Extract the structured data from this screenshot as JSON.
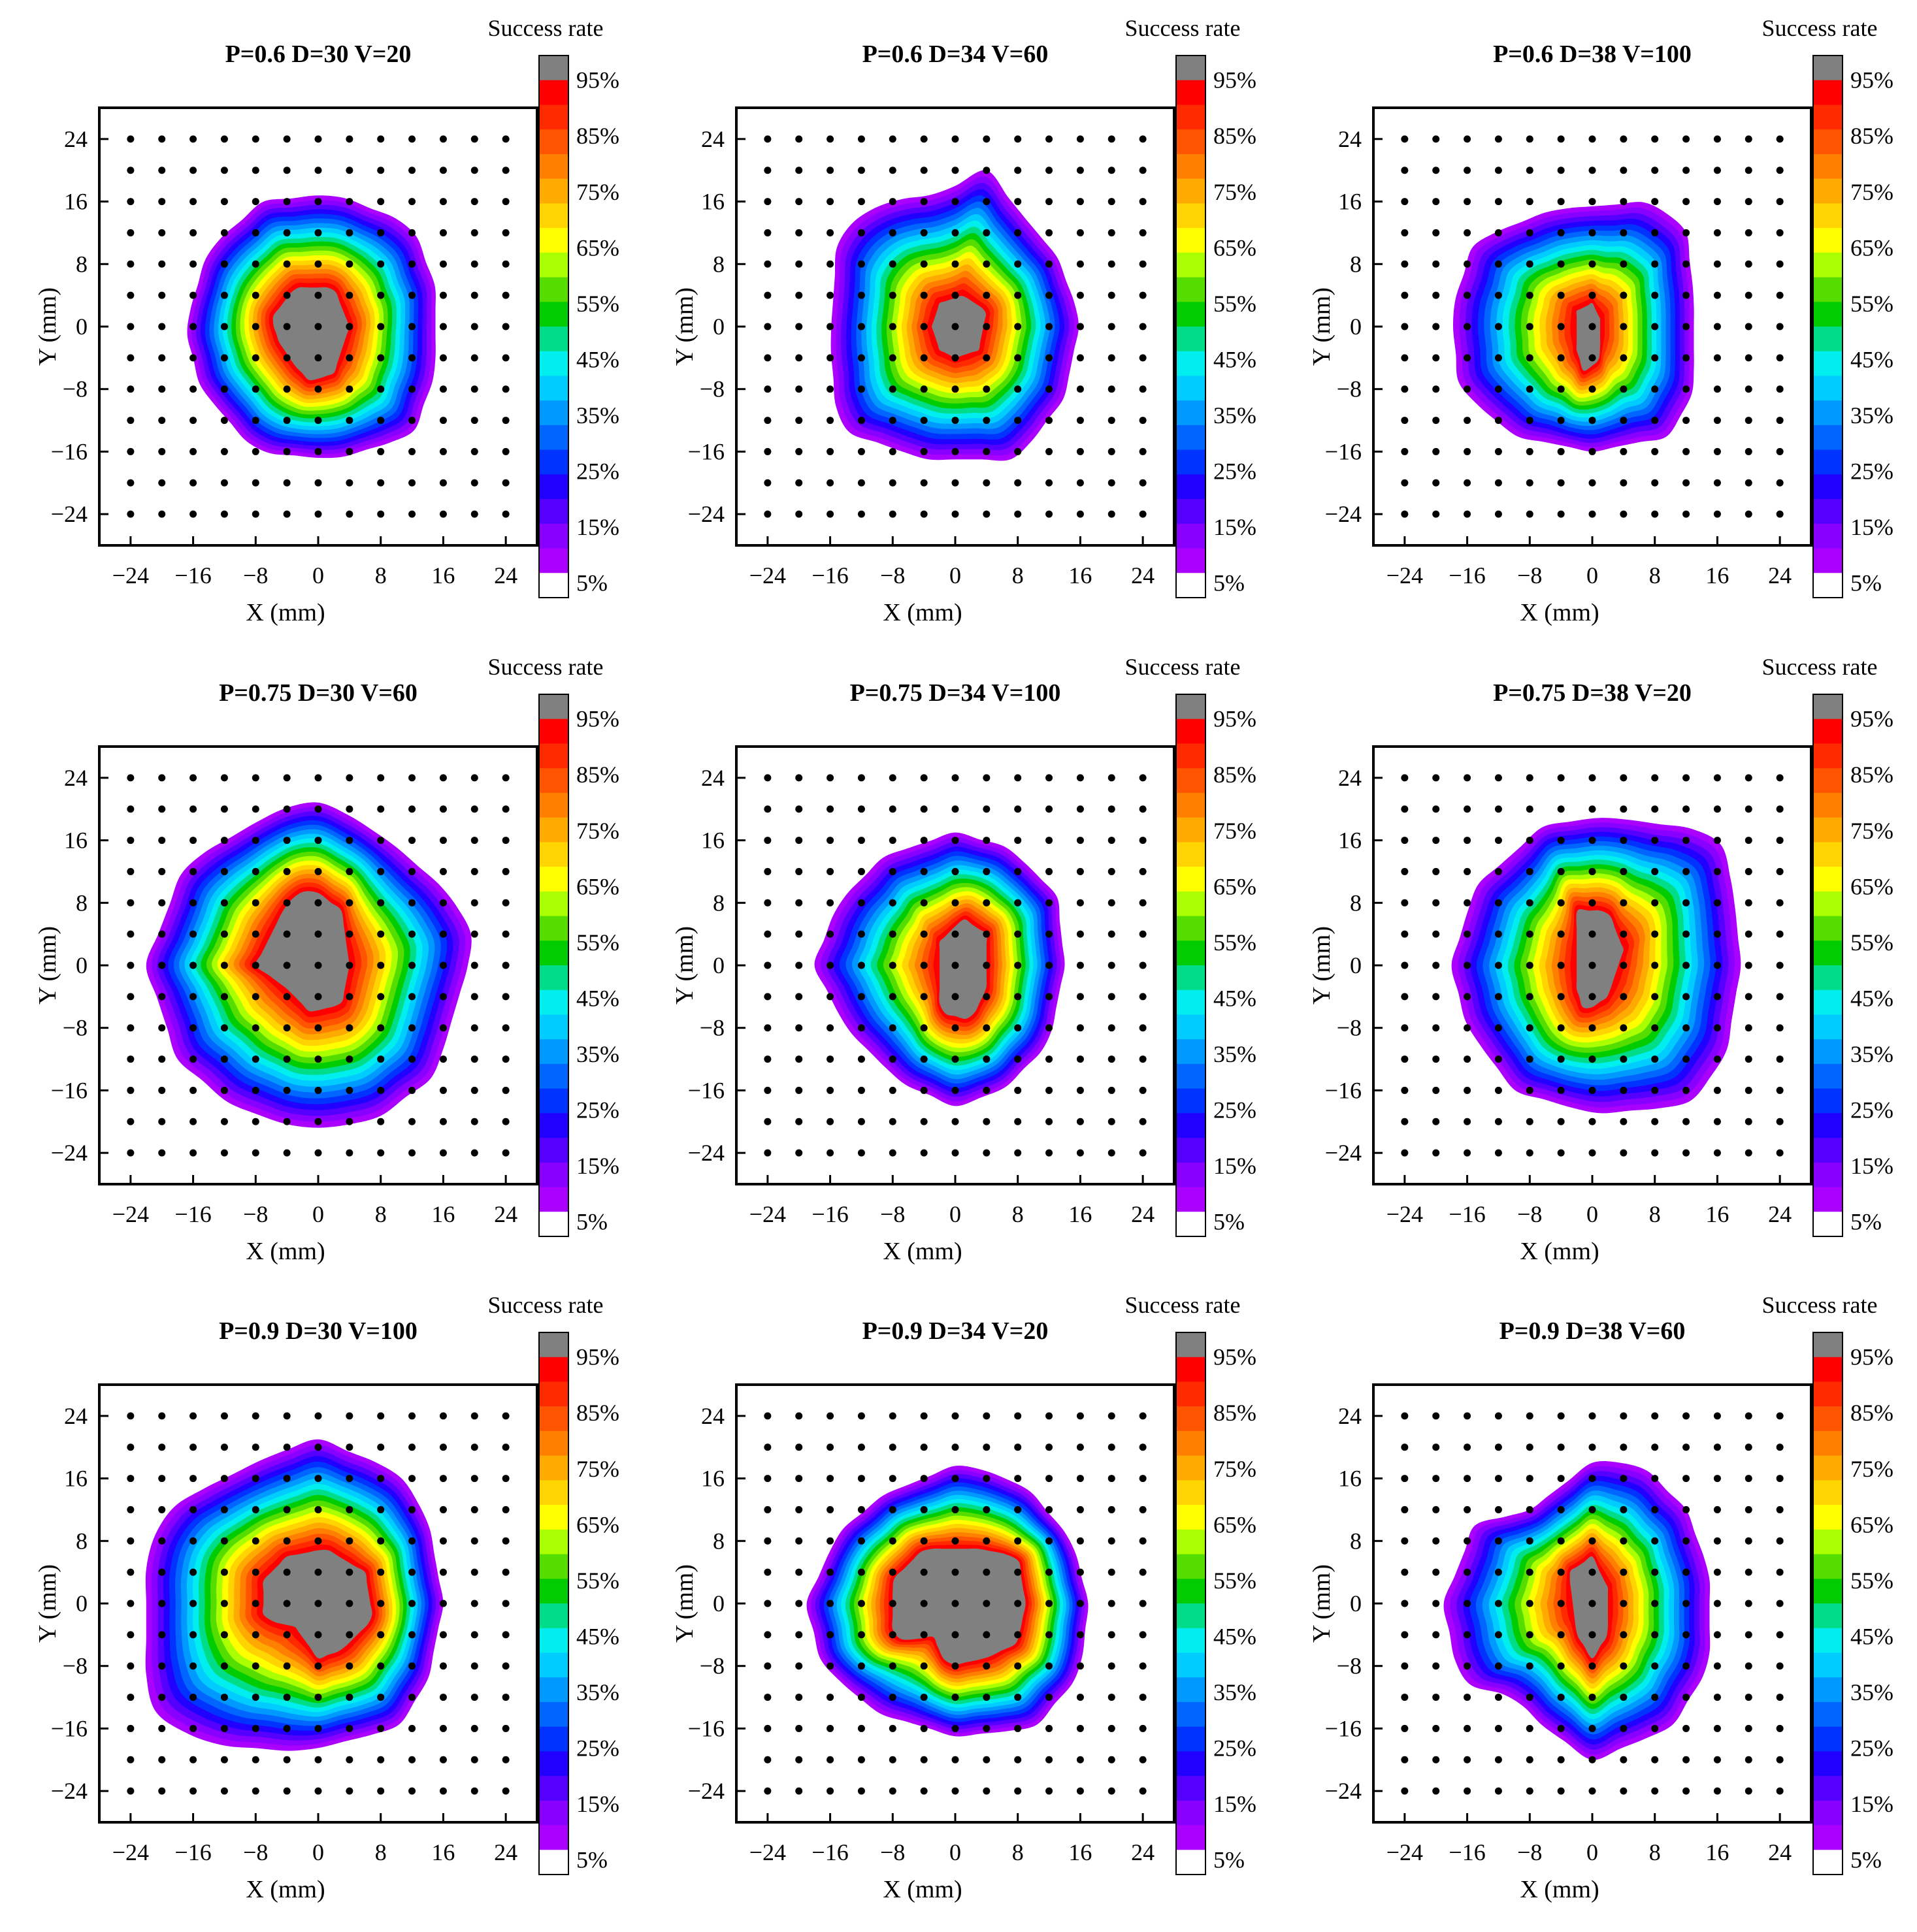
{
  "chart_data": [
    {
      "type": "heatmap",
      "title": "P=0.6 D=30 V=20",
      "xlabel": "X (mm)",
      "ylabel": "Y (mm)",
      "xlim": [
        -28,
        28
      ],
      "ylim": [
        -28,
        28
      ],
      "x_ticks": [
        "−24",
        "−16",
        "−8",
        "0",
        "8",
        "16",
        "24"
      ],
      "y_ticks": [
        "24",
        "16",
        "8",
        "0",
        "−8",
        "−16",
        "−24"
      ],
      "grid_points_step_mm": 4,
      "colorbar_title": "Success rate",
      "contour": {
        "center": [
          0,
          -1
        ],
        "radius_5": [
          18,
          16
        ],
        "radius_95": [
          6,
          7
        ],
        "points": [
          [
            -17,
            0
          ],
          [
            -14,
            10
          ],
          [
            -7,
            16
          ],
          [
            2,
            17
          ],
          [
            12,
            13
          ],
          [
            15,
            5
          ],
          [
            15,
            -6
          ],
          [
            12,
            -14
          ],
          [
            2,
            -17
          ],
          [
            -8,
            -16
          ],
          [
            -15,
            -8
          ]
        ],
        "core": [
          [
            -6,
            1
          ],
          [
            -3,
            5
          ],
          [
            2,
            5
          ],
          [
            4,
            0
          ],
          [
            2,
            -6
          ],
          [
            -1,
            -7
          ],
          [
            -3,
            -5
          ],
          [
            -5,
            -2
          ]
        ]
      }
    },
    {
      "type": "heatmap",
      "title": "P=0.6 D=34 V=60",
      "xlabel": "X (mm)",
      "ylabel": "Y (mm)",
      "xlim": [
        -28,
        28
      ],
      "ylim": [
        -28,
        28
      ],
      "x_ticks": [
        "−24",
        "−16",
        "−8",
        "0",
        "8",
        "16",
        "24"
      ],
      "y_ticks": [
        "24",
        "16",
        "8",
        "0",
        "−8",
        "−16",
        "−24"
      ],
      "grid_points_step_mm": 4,
      "colorbar_title": "Success rate",
      "contour": {
        "center": [
          0,
          0
        ],
        "radius_5": [
          15,
          17
        ],
        "radius_95": [
          3,
          3
        ],
        "points": [
          [
            -15,
            12
          ],
          [
            -9,
            16
          ],
          [
            -2,
            17
          ],
          [
            4,
            20
          ],
          [
            8,
            15
          ],
          [
            13,
            9
          ],
          [
            16,
            1
          ],
          [
            14,
            -9
          ],
          [
            8,
            -17
          ],
          [
            -4,
            -17
          ],
          [
            -15,
            -13
          ],
          [
            -16,
            -2
          ]
        ],
        "core": [
          [
            -3,
            0
          ],
          [
            -2,
            3
          ],
          [
            1,
            4
          ],
          [
            4,
            2
          ],
          [
            3,
            -3
          ],
          [
            0,
            -4
          ],
          [
            -2,
            -3
          ]
        ]
      }
    },
    {
      "type": "heatmap",
      "title": "P=0.6 D=38 V=100",
      "xlabel": "X (mm)",
      "ylabel": "Y (mm)",
      "xlim": [
        -28,
        28
      ],
      "ylim": [
        -28,
        28
      ],
      "x_ticks": [
        "−24",
        "−16",
        "−8",
        "0",
        "8",
        "16",
        "24"
      ],
      "y_ticks": [
        "24",
        "16",
        "8",
        "0",
        "−8",
        "−16",
        "−24"
      ],
      "grid_points_step_mm": 4,
      "colorbar_title": "Success rate",
      "contour": {
        "center": [
          0,
          0
        ],
        "radius_5": [
          18,
          16
        ],
        "radius_95": [
          2,
          4
        ],
        "points": [
          [
            -18,
            2
          ],
          [
            -15,
            11
          ],
          [
            -5,
            15
          ],
          [
            8,
            16
          ],
          [
            12,
            12
          ],
          [
            13,
            4
          ],
          [
            13,
            -8
          ],
          [
            10,
            -14
          ],
          [
            0,
            -16
          ],
          [
            -10,
            -14
          ],
          [
            -17,
            -8
          ]
        ],
        "core": [
          [
            -2,
            2
          ],
          [
            0,
            3
          ],
          [
            1,
            1
          ],
          [
            1,
            -4
          ],
          [
            -1,
            -6
          ],
          [
            -2,
            -3
          ]
        ]
      }
    },
    {
      "type": "heatmap",
      "title": "P=0.75 D=30 V=60",
      "xlabel": "X (mm)",
      "ylabel": "Y (mm)",
      "xlim": [
        -28,
        28
      ],
      "ylim": [
        -28,
        28
      ],
      "x_ticks": [
        "−24",
        "−16",
        "−8",
        "0",
        "8",
        "16",
        "24"
      ],
      "y_ticks": [
        "24",
        "16",
        "8",
        "0",
        "−8",
        "−16",
        "−24"
      ],
      "grid_points_step_mm": 4,
      "colorbar_title": "Success rate",
      "contour": {
        "center": [
          0,
          0
        ],
        "radius_5": [
          22,
          21
        ],
        "radius_95": [
          6,
          8
        ],
        "points": [
          [
            -22,
            0
          ],
          [
            -17,
            13
          ],
          [
            -5,
            20
          ],
          [
            1,
            21
          ],
          [
            9,
            16
          ],
          [
            17,
            9
          ],
          [
            20,
            3
          ],
          [
            18,
            -4
          ],
          [
            15,
            -14
          ],
          [
            7,
            -20
          ],
          [
            -2,
            -21
          ],
          [
            -11,
            -18
          ],
          [
            -18,
            -12
          ]
        ],
        "core": [
          [
            -8,
            0
          ],
          [
            -4,
            8
          ],
          [
            -1,
            10
          ],
          [
            3,
            7
          ],
          [
            4,
            0
          ],
          [
            3,
            -5
          ],
          [
            -1,
            -6
          ],
          [
            -4,
            -3
          ]
        ]
      }
    },
    {
      "type": "heatmap",
      "title": "P=0.75 D=34 V=100",
      "xlabel": "X (mm)",
      "ylabel": "Y (mm)",
      "xlim": [
        -28,
        28
      ],
      "ylim": [
        -28,
        28
      ],
      "x_ticks": [
        "−24",
        "−16",
        "−8",
        "0",
        "8",
        "16",
        "24"
      ],
      "y_ticks": [
        "24",
        "16",
        "8",
        "0",
        "−8",
        "−16",
        "−24"
      ],
      "grid_points_step_mm": 4,
      "colorbar_title": "Success rate",
      "contour": {
        "center": [
          0,
          0
        ],
        "radius_5": [
          17,
          17
        ],
        "radius_95": [
          3,
          7
        ],
        "points": [
          [
            -18,
            0
          ],
          [
            -15,
            8
          ],
          [
            -9,
            14
          ],
          [
            0,
            17
          ],
          [
            7,
            15
          ],
          [
            13,
            9
          ],
          [
            14,
            0
          ],
          [
            12,
            -10
          ],
          [
            6,
            -16
          ],
          [
            0,
            -18
          ],
          [
            -7,
            -15
          ],
          [
            -14,
            -8
          ]
        ],
        "core": [
          [
            -2,
            -6
          ],
          [
            -2,
            3
          ],
          [
            1,
            6
          ],
          [
            4,
            4
          ],
          [
            4,
            -3
          ],
          [
            2,
            -7
          ]
        ]
      }
    },
    {
      "type": "heatmap",
      "title": "P=0.75 D=38 V=20",
      "xlabel": "X (mm)",
      "ylabel": "Y (mm)",
      "xlim": [
        -28,
        28
      ],
      "ylim": [
        -28,
        28
      ],
      "x_ticks": [
        "−24",
        "−16",
        "−8",
        "0",
        "8",
        "16",
        "24"
      ],
      "y_ticks": [
        "24",
        "16",
        "8",
        "0",
        "−8",
        "−16",
        "−24"
      ],
      "grid_points_step_mm": 4,
      "colorbar_title": "Success rate",
      "contour": {
        "center": [
          1,
          0
        ],
        "radius_5": [
          19,
          19
        ],
        "radius_95": [
          3,
          6
        ],
        "points": [
          [
            -15,
            10
          ],
          [
            -6,
            18
          ],
          [
            2,
            19
          ],
          [
            16,
            17
          ],
          [
            18,
            10
          ],
          [
            19,
            0
          ],
          [
            17,
            -12
          ],
          [
            12,
            -18
          ],
          [
            0,
            -19
          ],
          [
            -10,
            -16
          ],
          [
            -16,
            -8
          ],
          [
            -18,
            0
          ]
        ],
        "core": [
          [
            -2,
            7
          ],
          [
            2,
            7
          ],
          [
            4,
            2
          ],
          [
            2,
            -4
          ],
          [
            -1,
            -6
          ],
          [
            -2,
            -3
          ]
        ]
      }
    },
    {
      "type": "heatmap",
      "title": "P=0.9 D=30 V=100",
      "xlabel": "X (mm)",
      "ylabel": "Y (mm)",
      "xlim": [
        -28,
        28
      ],
      "ylim": [
        -28,
        28
      ],
      "x_ticks": [
        "−24",
        "−16",
        "−8",
        "0",
        "8",
        "16",
        "24"
      ],
      "y_ticks": [
        "24",
        "16",
        "8",
        "0",
        "−8",
        "−16",
        "−24"
      ],
      "grid_points_step_mm": 4,
      "colorbar_title": "Success rate",
      "contour": {
        "center": [
          0,
          0
        ],
        "radius_5": [
          22,
          19
        ],
        "radius_95": [
          7,
          7
        ],
        "points": [
          [
            -22,
            -12
          ],
          [
            -22,
            7
          ],
          [
            -18,
            13
          ],
          [
            -6,
            19
          ],
          [
            0,
            21
          ],
          [
            10,
            17
          ],
          [
            14,
            11
          ],
          [
            16,
            0
          ],
          [
            14,
            -10
          ],
          [
            10,
            -16
          ],
          [
            -2,
            -19
          ],
          [
            -14,
            -18
          ],
          [
            -20,
            -15
          ]
        ],
        "core": [
          [
            -7,
            -2
          ],
          [
            -7,
            3
          ],
          [
            -4,
            6
          ],
          [
            1,
            7
          ],
          [
            6,
            4
          ],
          [
            7,
            -2
          ],
          [
            3,
            -6
          ],
          [
            0,
            -7
          ],
          [
            -3,
            -3
          ]
        ]
      }
    },
    {
      "type": "heatmap",
      "title": "P=0.9 D=34 V=20",
      "xlabel": "X (mm)",
      "ylabel": "Y (mm)",
      "xlim": [
        -28,
        28
      ],
      "ylim": [
        -28,
        28
      ],
      "x_ticks": [
        "−24",
        "−16",
        "−8",
        "0",
        "8",
        "16",
        "24"
      ],
      "y_ticks": [
        "24",
        "16",
        "8",
        "0",
        "−8",
        "−16",
        "−24"
      ],
      "grid_points_step_mm": 4,
      "colorbar_title": "Success rate",
      "contour": {
        "center": [
          0,
          0
        ],
        "radius_5": [
          18,
          17
        ],
        "radius_95": [
          8,
          8
        ],
        "points": [
          [
            -19,
            0
          ],
          [
            -15,
            9
          ],
          [
            -9,
            14
          ],
          [
            1,
            18
          ],
          [
            9,
            15
          ],
          [
            15,
            8
          ],
          [
            17,
            0
          ],
          [
            16,
            -9
          ],
          [
            10,
            -16
          ],
          [
            0,
            -17
          ],
          [
            -10,
            -14
          ],
          [
            -17,
            -8
          ]
        ],
        "core": [
          [
            -8,
            -4
          ],
          [
            -8,
            3
          ],
          [
            -4,
            7
          ],
          [
            3,
            7
          ],
          [
            8,
            6
          ],
          [
            9,
            0
          ],
          [
            8,
            -5
          ],
          [
            4,
            -7
          ],
          [
            -1,
            -8
          ],
          [
            -3,
            -4
          ],
          [
            -6,
            -5
          ]
        ]
      }
    },
    {
      "type": "heatmap",
      "title": "P=0.9 D=38 V=60",
      "xlabel": "X (mm)",
      "ylabel": "Y (mm)",
      "xlim": [
        -28,
        28
      ],
      "ylim": [
        -28,
        28
      ],
      "x_ticks": [
        "−24",
        "−16",
        "−8",
        "0",
        "8",
        "16",
        "24"
      ],
      "y_ticks": [
        "24",
        "16",
        "8",
        "0",
        "−8",
        "−16",
        "−24"
      ],
      "grid_points_step_mm": 4,
      "colorbar_title": "Success rate",
      "contour": {
        "center": [
          0,
          0
        ],
        "radius_5": [
          18,
          20
        ],
        "radius_95": [
          3,
          7
        ],
        "points": [
          [
            -19,
            0
          ],
          [
            -15,
            10
          ],
          [
            -8,
            12
          ],
          [
            0,
            18
          ],
          [
            6,
            18
          ],
          [
            12,
            12
          ],
          [
            15,
            4
          ],
          [
            15,
            -8
          ],
          [
            10,
            -16
          ],
          [
            0,
            -20
          ],
          [
            -6,
            -16
          ],
          [
            -10,
            -12
          ],
          [
            -17,
            -10
          ]
        ],
        "core": [
          [
            -3,
            4
          ],
          [
            0,
            6
          ],
          [
            2,
            2
          ],
          [
            2,
            -4
          ],
          [
            0,
            -7
          ],
          [
            -2,
            -4
          ]
        ]
      }
    }
  ],
  "colorbar": {
    "title": "Success rate",
    "labels": [
      "95%",
      "85%",
      "75%",
      "65%",
      "55%",
      "45%",
      "35%",
      "25%",
      "15%",
      "5%"
    ],
    "colors": [
      "#808080",
      "#ff0000",
      "#ff2a00",
      "#ff5500",
      "#ff8000",
      "#ffaa00",
      "#ffd400",
      "#ffff00",
      "#aaff00",
      "#55dd00",
      "#00cc00",
      "#00dd88",
      "#00eeee",
      "#00ccff",
      "#0099ff",
      "#0066ff",
      "#0033ff",
      "#2200ff",
      "#5500ff",
      "#8800ff",
      "#aa00ff",
      "#ffffff"
    ]
  },
  "grid_point_color": "#000000"
}
